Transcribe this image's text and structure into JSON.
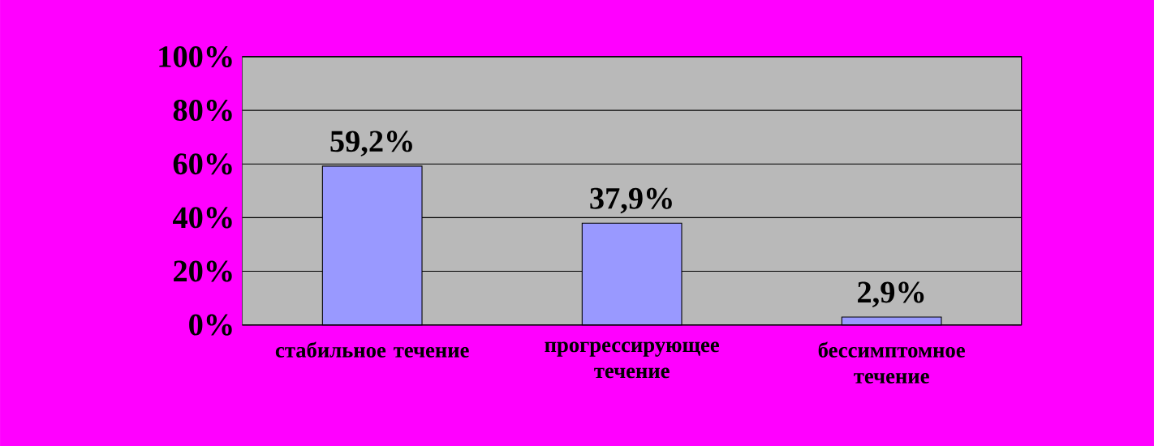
{
  "chart_data": {
    "type": "bar",
    "categories": [
      "стабильное течение",
      "прогрессирующее течение",
      "бессимптомное течение"
    ],
    "values": [
      59.2,
      37.9,
      2.9
    ],
    "value_labels": [
      "59,2%",
      "37,9%",
      "2,9%"
    ],
    "color": "#9999ff",
    "ylim": [
      0,
      100
    ],
    "yticks": [
      {
        "value": 0,
        "label": "0%"
      },
      {
        "value": 20,
        "label": "20%"
      },
      {
        "value": 40,
        "label": "40%"
      },
      {
        "value": 60,
        "label": "60%"
      },
      {
        "value": 80,
        "label": "80%"
      },
      {
        "value": 100,
        "label": "100%"
      }
    ],
    "grid": "y"
  }
}
